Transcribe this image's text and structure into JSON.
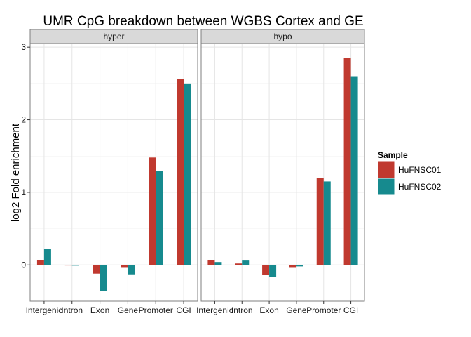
{
  "chart_data": {
    "type": "bar",
    "title": "UMR CpG breakdown between WGBS Cortex and GE",
    "xlabel": "",
    "ylabel": "log2 Fold enrichment",
    "ylim": [
      -0.5,
      3.05
    ],
    "y_ticks": [
      0,
      1,
      2,
      3
    ],
    "grid": true,
    "legend_position": "right",
    "legend_title": "Sample",
    "categories": [
      "Intergenic",
      "Intron",
      "Exon",
      "Gene",
      "Promoter",
      "CGI"
    ],
    "facets": [
      {
        "name": "hyper",
        "series": [
          {
            "name": "HuFNSC01",
            "color": "#c0392f",
            "values": [
              0.07,
              0.0,
              -0.12,
              -0.04,
              1.48,
              2.56
            ]
          },
          {
            "name": "HuFNSC02",
            "color": "#168a8e",
            "values": [
              0.22,
              -0.01,
              -0.36,
              -0.13,
              1.29,
              2.5
            ]
          }
        ]
      },
      {
        "name": "hypo",
        "series": [
          {
            "name": "HuFNSC01",
            "color": "#c0392f",
            "values": [
              0.07,
              0.02,
              -0.14,
              -0.04,
              1.2,
              2.85
            ]
          },
          {
            "name": "HuFNSC02",
            "color": "#168a8e",
            "values": [
              0.04,
              0.06,
              -0.17,
              -0.02,
              1.15,
              2.6
            ]
          }
        ]
      }
    ]
  }
}
